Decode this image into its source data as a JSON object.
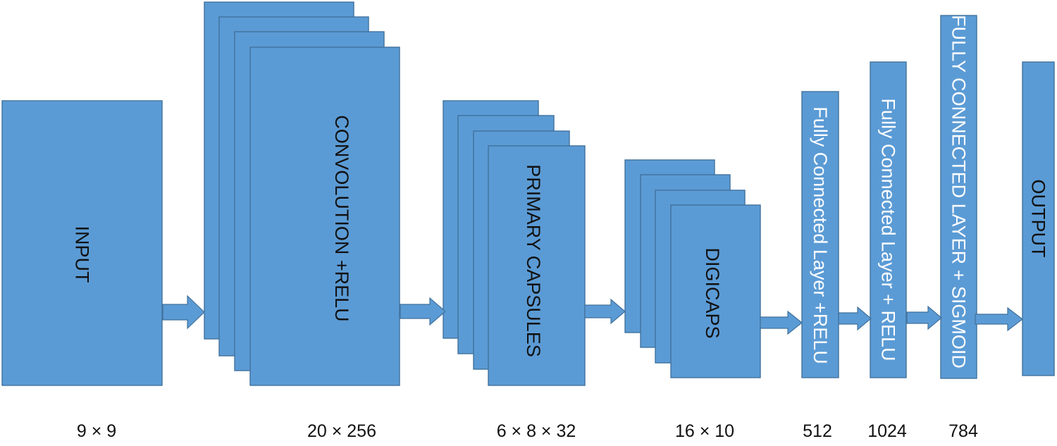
{
  "colors": {
    "block_fill": "#5b9bd5",
    "block_stroke": "#41719c",
    "arrow_fill": "#5b9bd5",
    "label_dark": "#111111",
    "label_light": "#ffffff"
  },
  "layers": [
    {
      "label": "INPUT",
      "dimension": "9 × 9",
      "stack": 1
    },
    {
      "label": "CONVOLUTION +RELU",
      "dimension": "20 × 256",
      "stack": 4
    },
    {
      "label": "PRIMARY CAPSULES",
      "dimension": "6 × 8 × 32",
      "stack": 4
    },
    {
      "label": "DIGICAPS",
      "dimension": "16 × 10",
      "stack": 4
    },
    {
      "label": "Fully Connected Layer +RELU",
      "dimension": "512",
      "stack": 1
    },
    {
      "label": "Fully Connected Layer + RELU",
      "dimension": "1024",
      "stack": 1
    },
    {
      "label": "FULLY CONNECTED LAYER + SIGMOID",
      "dimension": "784",
      "stack": 1
    },
    {
      "label": "OUTPUT",
      "dimension": "",
      "stack": 1
    }
  ]
}
